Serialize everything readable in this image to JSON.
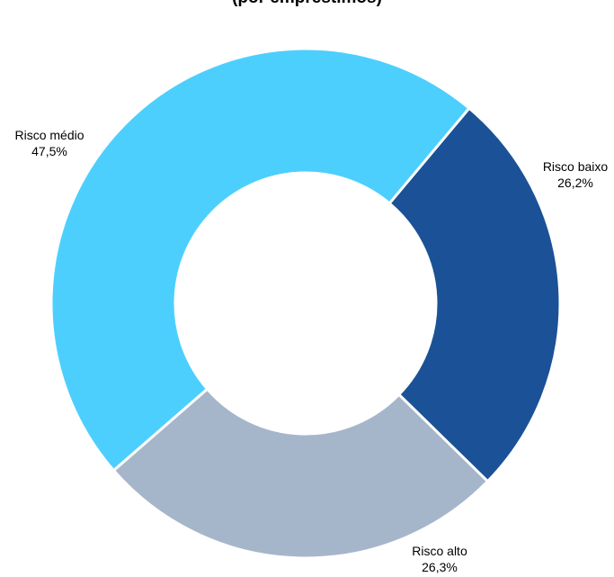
{
  "chart_data": {
    "type": "pie",
    "variant": "donut",
    "title": "(por empréstimos)",
    "categories": [
      "Risco baixo",
      "Risco alto",
      "Risco médio"
    ],
    "values": [
      26.2,
      26.3,
      47.5
    ],
    "value_labels": [
      "26,2%",
      "26,3%",
      "47,5%"
    ],
    "colors": [
      "#1b5196",
      "#a6b6ca",
      "#4dcffe"
    ],
    "legend": "none",
    "data_labels": "outside"
  }
}
